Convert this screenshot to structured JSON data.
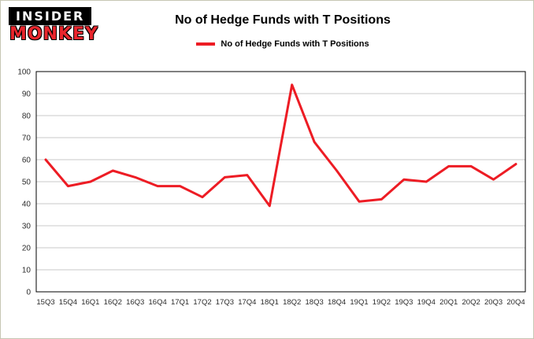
{
  "logo": {
    "line1": "INSIDER",
    "line2": "MONKEY"
  },
  "colors": {
    "logo_red": "#e8262d",
    "line": "#ed1c24",
    "grid": "#c9c9c9",
    "axis": "#000000",
    "tick_label": "#2b2b2b"
  },
  "chart_data": {
    "type": "line",
    "title": "No of Hedge Funds with T Positions",
    "legend_label": "No of Hedge Funds with T Positions",
    "categories": [
      "15Q3",
      "15Q4",
      "16Q1",
      "16Q2",
      "16Q3",
      "16Q4",
      "17Q1",
      "17Q2",
      "17Q3",
      "17Q4",
      "18Q1",
      "18Q2",
      "18Q3",
      "18Q4",
      "19Q1",
      "19Q2",
      "19Q3",
      "19Q4",
      "20Q1",
      "20Q2",
      "20Q3",
      "20Q4"
    ],
    "values": [
      60,
      48,
      50,
      55,
      52,
      48,
      48,
      43,
      52,
      53,
      39,
      94,
      68,
      55,
      41,
      42,
      51,
      50,
      57,
      57,
      51,
      58
    ],
    "ylim": [
      0,
      100
    ],
    "ytick_interval": 10,
    "grid": true,
    "legend_position": "top-center",
    "line_color": "#ed1c24",
    "grid_color": "#c9c9c9",
    "axis_color": "#000000",
    "tick_label_color": "#2b2b2b"
  }
}
